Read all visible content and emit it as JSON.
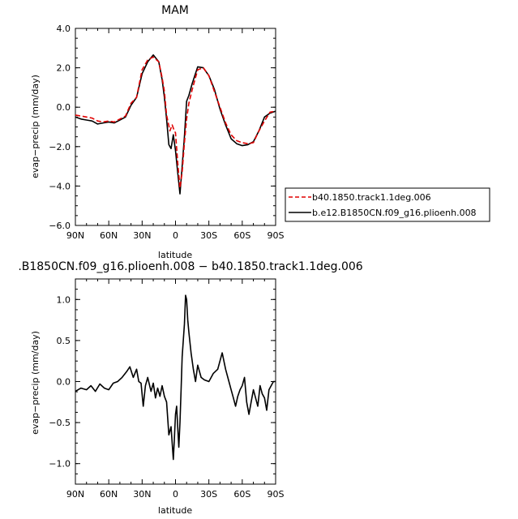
{
  "chart_data": [
    {
      "type": "line",
      "title": "MAM",
      "xlabel": "latitude",
      "ylabel": "evap−precip  (mm/day)",
      "x_tick_labels": [
        "90N",
        "60N",
        "30N",
        "0",
        "30S",
        "60S",
        "90S"
      ],
      "x_tick_values": [
        90,
        60,
        30,
        0,
        -30,
        -60,
        -90
      ],
      "xlim": [
        90,
        -90
      ],
      "y_tick_labels": [
        "4.0",
        "2.0",
        "0.0",
        "−2.0",
        "−4.0",
        "−6.0"
      ],
      "y_tick_values": [
        4,
        2,
        0,
        -2,
        -4,
        -6
      ],
      "ylim": [
        -6,
        4
      ],
      "legend_position": "right",
      "series": [
        {
          "name": "b40.1850.track1.1deg.006",
          "color": "#e00000",
          "dash": "dashed",
          "x": [
            90,
            85,
            80,
            75,
            70,
            65,
            60,
            55,
            50,
            45,
            40,
            35,
            30,
            25,
            20,
            15,
            12,
            10,
            8,
            5,
            3,
            1,
            0,
            -2,
            -4,
            -6,
            -8,
            -10,
            -12,
            -15,
            -20,
            -25,
            -30,
            -35,
            -40,
            -45,
            -50,
            -55,
            -60,
            -65,
            -70,
            -75,
            -80,
            -85,
            -90
          ],
          "y": [
            -0.4,
            -0.45,
            -0.5,
            -0.55,
            -0.7,
            -0.75,
            -0.7,
            -0.75,
            -0.6,
            -0.45,
            0.2,
            0.5,
            1.9,
            2.4,
            2.55,
            2.3,
            1.5,
            0.8,
            -0.4,
            -1.2,
            -0.9,
            -1.2,
            -1.3,
            -2.8,
            -4.1,
            -3.3,
            -1.8,
            -0.6,
            0.2,
            0.9,
            1.9,
            2.0,
            1.6,
            0.8,
            0.0,
            -0.8,
            -1.4,
            -1.7,
            -1.8,
            -1.85,
            -1.8,
            -1.2,
            -0.7,
            -0.25,
            -0.2
          ]
        },
        {
          "name": "b.e12.B1850CN.f09_g16.plioenh.008",
          "color": "#000000",
          "dash": "solid",
          "x": [
            90,
            85,
            80,
            75,
            70,
            65,
            60,
            55,
            50,
            45,
            40,
            35,
            30,
            25,
            20,
            15,
            12,
            10,
            8,
            6,
            4,
            2,
            0,
            -2,
            -4,
            -6,
            -8,
            -10,
            -12,
            -15,
            -20,
            -25,
            -30,
            -35,
            -40,
            -45,
            -50,
            -55,
            -60,
            -65,
            -70,
            -75,
            -80,
            -85,
            -90
          ],
          "y": [
            -0.5,
            -0.6,
            -0.65,
            -0.7,
            -0.85,
            -0.8,
            -0.75,
            -0.8,
            -0.65,
            -0.5,
            0.1,
            0.5,
            1.7,
            2.3,
            2.65,
            2.3,
            1.4,
            0.5,
            -0.6,
            -1.9,
            -2.1,
            -1.4,
            -2.2,
            -3.3,
            -4.4,
            -3.0,
            -1.5,
            0.3,
            0.6,
            1.2,
            2.05,
            2.0,
            1.6,
            0.9,
            -0.1,
            -0.9,
            -1.6,
            -1.85,
            -1.95,
            -1.9,
            -1.75,
            -1.2,
            -0.5,
            -0.3,
            -0.2
          ]
        }
      ]
    },
    {
      "type": "line",
      "title": ".B1850CN.f09_g16.plioenh.008 − b40.1850.track1.1deg.006",
      "xlabel": "latitude",
      "ylabel": "evap−precip  (mm/day)",
      "x_tick_labels": [
        "90N",
        "60N",
        "30N",
        "0",
        "30S",
        "60S",
        "90S"
      ],
      "x_tick_values": [
        90,
        60,
        30,
        0,
        -30,
        -60,
        -90
      ],
      "xlim": [
        90,
        -90
      ],
      "y_tick_labels": [
        "1.0",
        "0.5",
        "0.0",
        "−0.5",
        "−1.0"
      ],
      "y_tick_values": [
        1,
        0.5,
        0,
        -0.5,
        -1
      ],
      "ylim": [
        -1.25,
        1.25
      ],
      "series": [
        {
          "color": "#000000",
          "dash": "solid",
          "x": [
            90,
            85,
            80,
            76,
            72,
            68,
            64,
            60,
            56,
            52,
            48,
            44,
            41,
            38,
            35,
            33,
            31,
            29,
            27,
            25,
            22,
            20,
            18,
            16,
            14,
            12,
            10,
            8,
            6,
            4,
            2,
            1,
            0,
            -1,
            -2,
            -3,
            -4,
            -5,
            -6,
            -7,
            -8,
            -9,
            -10,
            -11,
            -12,
            -14,
            -16,
            -18,
            -20,
            -23,
            -26,
            -30,
            -34,
            -38,
            -42,
            -45,
            -48,
            -50,
            -52,
            -54,
            -56,
            -58,
            -60,
            -62,
            -64,
            -66,
            -68,
            -70,
            -72,
            -74,
            -76,
            -78,
            -80,
            -82,
            -84,
            -86,
            -88,
            -90
          ],
          "y": [
            -0.12,
            -0.08,
            -0.1,
            -0.05,
            -0.12,
            -0.03,
            -0.08,
            -0.1,
            -0.02,
            0.0,
            0.05,
            0.12,
            0.18,
            0.05,
            0.15,
            0.0,
            -0.02,
            -0.3,
            -0.05,
            0.05,
            -0.12,
            -0.02,
            -0.2,
            -0.08,
            -0.18,
            -0.05,
            -0.18,
            -0.25,
            -0.65,
            -0.55,
            -0.95,
            -0.7,
            -0.4,
            -0.3,
            -0.55,
            -0.8,
            -0.5,
            -0.1,
            0.3,
            0.5,
            0.7,
            1.05,
            1.0,
            0.75,
            0.6,
            0.35,
            0.15,
            0.0,
            0.2,
            0.05,
            0.02,
            0.0,
            0.1,
            0.15,
            0.35,
            0.15,
            0.0,
            -0.1,
            -0.2,
            -0.3,
            -0.18,
            -0.1,
            -0.05,
            0.05,
            -0.25,
            -0.4,
            -0.25,
            -0.1,
            -0.2,
            -0.3,
            -0.05,
            -0.15,
            -0.2,
            -0.35,
            -0.1,
            -0.05,
            0.0,
            0.0
          ]
        }
      ]
    }
  ]
}
